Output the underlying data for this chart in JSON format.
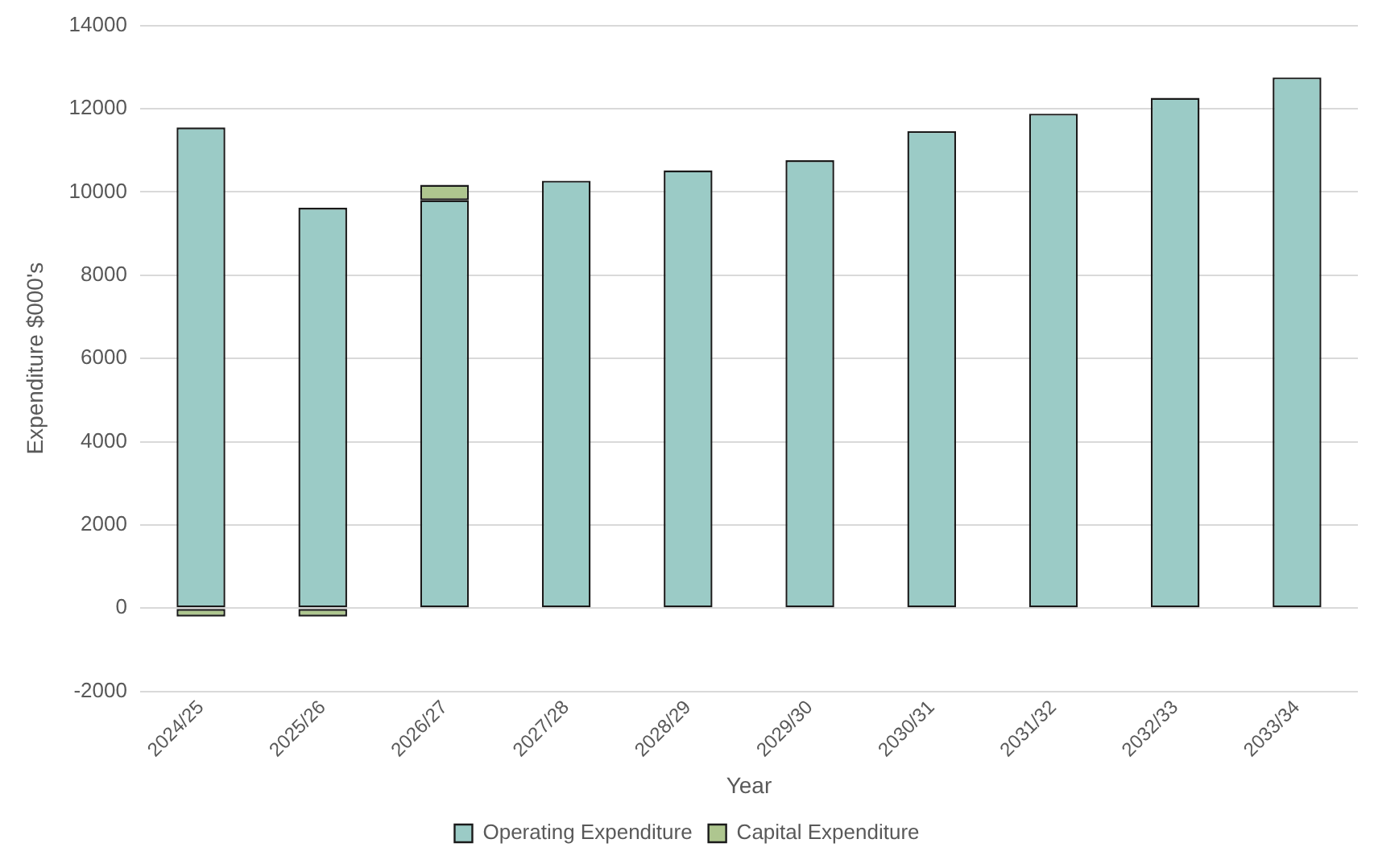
{
  "chart_data": {
    "type": "bar",
    "stacked": true,
    "xlabel": "Year",
    "ylabel": "Expenditure $000's",
    "categories": [
      "2024/25",
      "2025/26",
      "2026/27",
      "2027/28",
      "2028/29",
      "2029/30",
      "2030/31",
      "2031/32",
      "2032/33",
      "2033/34"
    ],
    "series": [
      {
        "name": "Operating Expenditure",
        "color": "#9bcbc6",
        "values": [
          11550,
          9620,
          9800,
          10270,
          10520,
          10760,
          11460,
          11880,
          12260,
          12750
        ]
      },
      {
        "name": "Capital Expenditure",
        "color": "#aec68f",
        "values": [
          -200,
          -200,
          370,
          0,
          0,
          0,
          0,
          0,
          0,
          0
        ]
      }
    ],
    "ylim": [
      -2000,
      14000
    ],
    "yticks": [
      -2000,
      0,
      2000,
      4000,
      6000,
      8000,
      10000,
      12000,
      14000
    ],
    "grid": "y",
    "legend": "bottom"
  }
}
